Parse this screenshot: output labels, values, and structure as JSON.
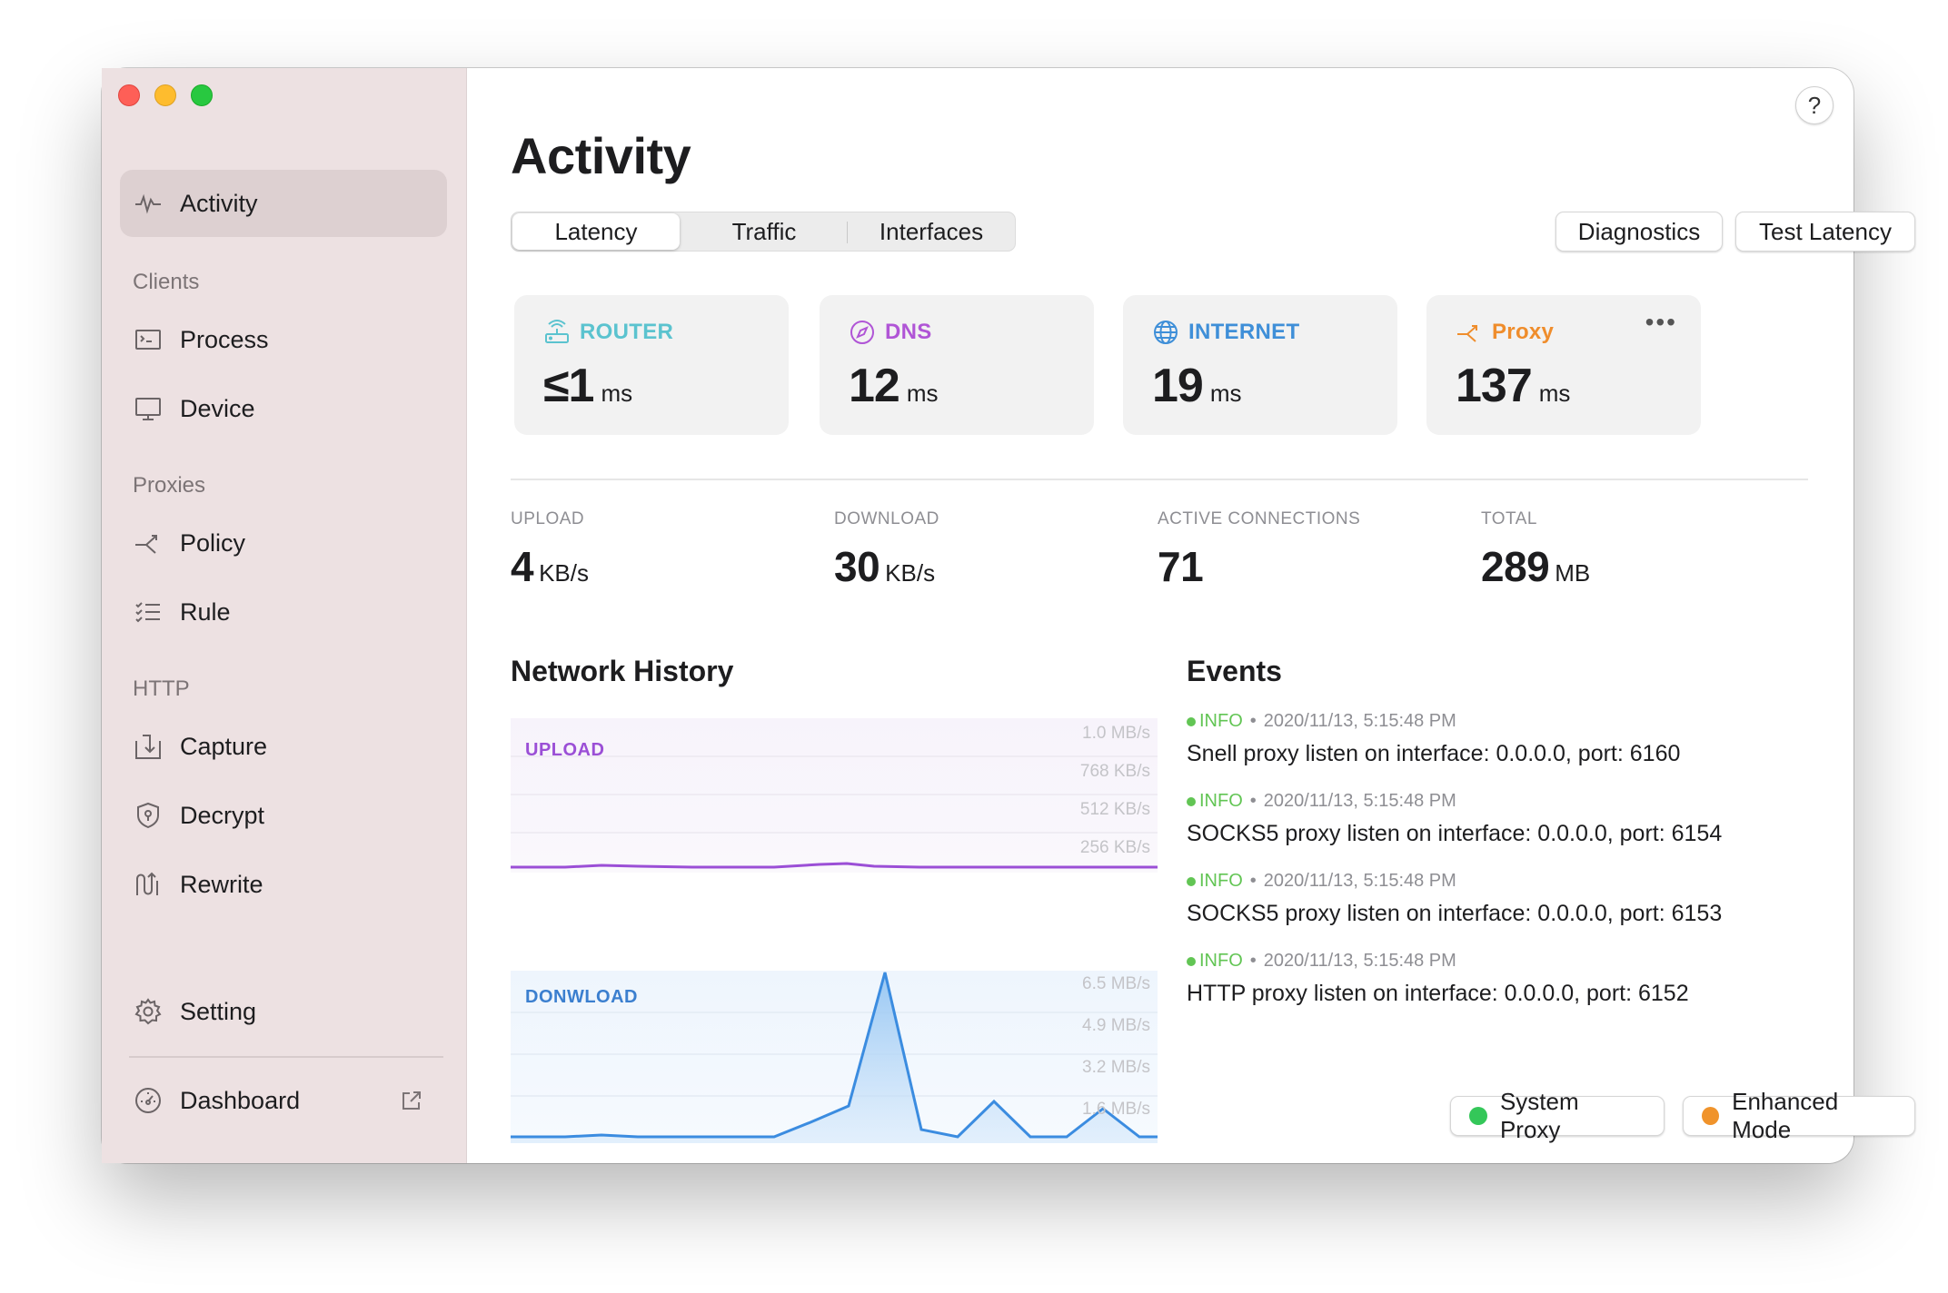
{
  "sidebar": {
    "items": {
      "activity": "Activity",
      "process": "Process",
      "device": "Device",
      "policy": "Policy",
      "rule": "Rule",
      "capture": "Capture",
      "decrypt": "Decrypt",
      "rewrite": "Rewrite",
      "setting": "Setting",
      "dashboard": "Dashboard"
    },
    "sections": {
      "clients": "Clients",
      "proxies": "Proxies",
      "http": "HTTP"
    }
  },
  "header": {
    "help": "?",
    "title": "Activity",
    "tabs": [
      "Latency",
      "Traffic",
      "Interfaces"
    ],
    "diagnostics": "Diagnostics",
    "test_latency": "Test Latency"
  },
  "latency": [
    {
      "label": "ROUTER",
      "value": "≤1",
      "unit": "ms",
      "color": "#5bc3cf",
      "icon": "router-icon"
    },
    {
      "label": "DNS",
      "value": "12",
      "unit": "ms",
      "color": "#b055d6",
      "icon": "compass-icon"
    },
    {
      "label": "INTERNET",
      "value": "19",
      "unit": "ms",
      "color": "#3f8fd8",
      "icon": "globe-icon"
    },
    {
      "label": "Proxy",
      "value": "137",
      "unit": "ms",
      "color": "#ef8d2c",
      "icon": "policy-icon",
      "more": "•••"
    }
  ],
  "stats": [
    {
      "label": "UPLOAD",
      "value": "4",
      "unit": "KB/s"
    },
    {
      "label": "DOWNLOAD",
      "value": "30",
      "unit": "KB/s"
    },
    {
      "label": "ACTIVE CONNECTIONS",
      "value": "71",
      "unit": ""
    },
    {
      "label": "TOTAL",
      "value": "289",
      "unit": "MB"
    }
  ],
  "network_history": {
    "title": "Network History",
    "upload": {
      "label": "UPLOAD",
      "ticks": [
        "1.0 MB/s",
        "768 KB/s",
        "512 KB/s",
        "256 KB/s"
      ],
      "color": "#9b4fd6"
    },
    "download": {
      "label": "DONWLOAD",
      "ticks": [
        "6.5 MB/s",
        "4.9 MB/s",
        "3.2 MB/s",
        "1.6 MB/s"
      ],
      "color": "#3b8ce0"
    }
  },
  "events": {
    "title": "Events",
    "items": [
      {
        "level": "INFO",
        "time": "2020/11/13, 5:15:48 PM",
        "message": "Snell proxy listen on interface: 0.0.0.0, port: 6160"
      },
      {
        "level": "INFO",
        "time": "2020/11/13, 5:15:48 PM",
        "message": "SOCKS5 proxy listen on interface: 0.0.0.0, port: 6154"
      },
      {
        "level": "INFO",
        "time": "2020/11/13, 5:15:48 PM",
        "message": "SOCKS5 proxy listen on interface: 0.0.0.0, port: 6153"
      },
      {
        "level": "INFO",
        "time": "2020/11/13, 5:15:48 PM",
        "message": "HTTP proxy listen on interface: 0.0.0.0, port: 6152"
      }
    ]
  },
  "status": {
    "system_proxy": {
      "label": "System Proxy",
      "color": "#34c759"
    },
    "enhanced_mode": {
      "label": "Enhanced Mode",
      "color": "#f0932b"
    }
  }
}
